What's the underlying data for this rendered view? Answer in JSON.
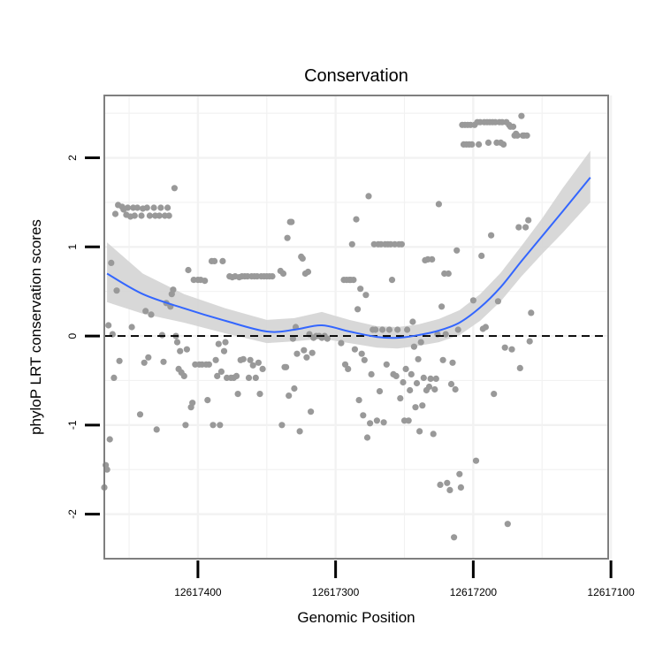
{
  "chart_data": {
    "type": "scatter",
    "title": "Conservation",
    "xlabel": "Genomic Position",
    "ylabel": "phyloP LRT conservation scores",
    "x_reversed": true,
    "xlim": [
      12617468,
      12617102
    ],
    "ylim": [
      -2.5,
      2.7
    ],
    "x_ticks": [
      12617400,
      12617300,
      12617200,
      12617100
    ],
    "x_tick_labels": [
      "12617400",
      "12617300",
      "12617200",
      "12617100"
    ],
    "y_ticks": [
      -2,
      -1,
      0,
      1,
      2
    ],
    "y_tick_labels": [
      "-2",
      "-1",
      "0",
      "1",
      "2"
    ],
    "grid": true,
    "reference_line": {
      "y": 0,
      "style": "dashed",
      "color": "#000000"
    },
    "colors": {
      "points": "#999999",
      "smooth_line": "#3366FF",
      "confidence_band": "#D4D4D4",
      "panel_border": "#7F7F7F",
      "grid": "#F2F2F2"
    },
    "smooth": {
      "method": "loess",
      "x": [
        12617466,
        12617440,
        12617410,
        12617380,
        12617350,
        12617330,
        12617310,
        12617290,
        12617270,
        12617255,
        12617240,
        12617225,
        12617210,
        12617195,
        12617180,
        12617165,
        12617150,
        12617135,
        12617115
      ],
      "y": [
        0.7,
        0.47,
        0.31,
        0.17,
        0.05,
        0.07,
        0.12,
        0.05,
        -0.01,
        -0.02,
        0.01,
        0.06,
        0.15,
        0.32,
        0.55,
        0.84,
        1.12,
        1.4,
        1.78
      ],
      "upper": [
        1.05,
        0.7,
        0.47,
        0.31,
        0.18,
        0.2,
        0.27,
        0.18,
        0.11,
        0.1,
        0.13,
        0.19,
        0.29,
        0.47,
        0.71,
        1.01,
        1.32,
        1.66,
        2.08
      ],
      "lower": [
        0.38,
        0.25,
        0.15,
        0.03,
        -0.08,
        -0.06,
        -0.03,
        -0.08,
        -0.13,
        -0.14,
        -0.11,
        -0.07,
        0.01,
        0.17,
        0.39,
        0.67,
        0.92,
        1.16,
        1.5
      ]
    },
    "points": [
      [
        12617468,
        -1.7
      ],
      [
        12617467,
        -1.45
      ],
      [
        12617466,
        -1.5
      ],
      [
        12617465,
        0.12
      ],
      [
        12617464,
        -1.16
      ],
      [
        12617463,
        0.82
      ],
      [
        12617462,
        0.02
      ],
      [
        12617461,
        -0.47
      ],
      [
        12617460,
        1.37
      ],
      [
        12617459,
        0.51
      ],
      [
        12617458,
        1.47
      ],
      [
        12617457,
        -0.28
      ],
      [
        12617455,
        1.45
      ],
      [
        12617454,
        1.42
      ],
      [
        12617452,
        1.36
      ],
      [
        12617451,
        1.44
      ],
      [
        12617449,
        1.34
      ],
      [
        12617448,
        0.1
      ],
      [
        12617447,
        1.44
      ],
      [
        12617446,
        1.35
      ],
      [
        12617444,
        1.44
      ],
      [
        12617442,
        -0.88
      ],
      [
        12617441,
        1.35
      ],
      [
        12617440,
        1.43
      ],
      [
        12617439,
        -0.3
      ],
      [
        12617438,
        0.28
      ],
      [
        12617437,
        1.44
      ],
      [
        12617436,
        -0.24
      ],
      [
        12617435,
        1.35
      ],
      [
        12617434,
        0.24
      ],
      [
        12617432,
        1.44
      ],
      [
        12617431,
        1.35
      ],
      [
        12617430,
        -1.05
      ],
      [
        12617428,
        1.35
      ],
      [
        12617427,
        1.44
      ],
      [
        12617426,
        0.01
      ],
      [
        12617425,
        -0.29
      ],
      [
        12617424,
        1.35
      ],
      [
        12617423,
        0.37
      ],
      [
        12617422,
        1.44
      ],
      [
        12617421,
        1.35
      ],
      [
        12617420,
        0.33
      ],
      [
        12617419,
        0.47
      ],
      [
        12617418,
        0.52
      ],
      [
        12617417,
        1.66
      ],
      [
        12617416,
        0.0
      ],
      [
        12617415,
        -0.07
      ],
      [
        12617414,
        -0.37
      ],
      [
        12617413,
        -0.17
      ],
      [
        12617412,
        -0.41
      ],
      [
        12617410,
        -0.45
      ],
      [
        12617409,
        -1.0
      ],
      [
        12617408,
        -0.15
      ],
      [
        12617407,
        0.74
      ],
      [
        12617405,
        -0.8
      ],
      [
        12617404,
        -0.75
      ],
      [
        12617403,
        0.63
      ],
      [
        12617402,
        -0.32
      ],
      [
        12617400,
        0.63
      ],
      [
        12617399,
        -0.32
      ],
      [
        12617398,
        0.63
      ],
      [
        12617397,
        -0.32
      ],
      [
        12617395,
        0.62
      ],
      [
        12617394,
        -0.32
      ],
      [
        12617393,
        -0.72
      ],
      [
        12617392,
        -0.32
      ],
      [
        12617390,
        0.84
      ],
      [
        12617389,
        -1.0
      ],
      [
        12617388,
        0.84
      ],
      [
        12617387,
        -0.27
      ],
      [
        12617386,
        -0.45
      ],
      [
        12617385,
        -0.09
      ],
      [
        12617384,
        -1.0
      ],
      [
        12617383,
        -0.4
      ],
      [
        12617382,
        0.84
      ],
      [
        12617381,
        -0.17
      ],
      [
        12617380,
        -0.07
      ],
      [
        12617379,
        -0.47
      ],
      [
        12617377,
        0.67
      ],
      [
        12617376,
        -0.47
      ],
      [
        12617375,
        0.66
      ],
      [
        12617374,
        -0.47
      ],
      [
        12617373,
        0.67
      ],
      [
        12617372,
        -0.45
      ],
      [
        12617371,
        -0.65
      ],
      [
        12617370,
        0.66
      ],
      [
        12617369,
        -0.27
      ],
      [
        12617368,
        0.67
      ],
      [
        12617367,
        -0.26
      ],
      [
        12617366,
        0.67
      ],
      [
        12617364,
        0.67
      ],
      [
        12617363,
        -0.47
      ],
      [
        12617362,
        -0.27
      ],
      [
        12617361,
        0.67
      ],
      [
        12617360,
        -0.33
      ],
      [
        12617359,
        0.67
      ],
      [
        12617358,
        -0.47
      ],
      [
        12617357,
        0.67
      ],
      [
        12617356,
        -0.3
      ],
      [
        12617355,
        -0.65
      ],
      [
        12617354,
        0.67
      ],
      [
        12617353,
        -0.37
      ],
      [
        12617352,
        0.67
      ],
      [
        12617350,
        0.67
      ],
      [
        12617348,
        0.67
      ],
      [
        12617346,
        0.67
      ],
      [
        12617340,
        0.73
      ],
      [
        12617339,
        -1.0
      ],
      [
        12617338,
        0.7
      ],
      [
        12617337,
        -0.35
      ],
      [
        12617336,
        -0.35
      ],
      [
        12617335,
        1.1
      ],
      [
        12617334,
        -0.67
      ],
      [
        12617333,
        1.28
      ],
      [
        12617332,
        1.28
      ],
      [
        12617331,
        -0.03
      ],
      [
        12617330,
        -0.59
      ],
      [
        12617329,
        0.1
      ],
      [
        12617328,
        -0.2
      ],
      [
        12617326,
        -1.07
      ],
      [
        12617325,
        0.89
      ],
      [
        12617324,
        0.87
      ],
      [
        12617323,
        -0.16
      ],
      [
        12617322,
        0.7
      ],
      [
        12617321,
        -0.24
      ],
      [
        12617320,
        0.72
      ],
      [
        12617319,
        0.02
      ],
      [
        12617318,
        -0.85
      ],
      [
        12617317,
        -0.19
      ],
      [
        12617316,
        -0.02
      ],
      [
        12617314,
        0.0
      ],
      [
        12617312,
        0.0
      ],
      [
        12617310,
        -0.02
      ],
      [
        12617308,
        0.0
      ],
      [
        12617306,
        -0.03
      ],
      [
        12617296,
        -0.08
      ],
      [
        12617294,
        0.63
      ],
      [
        12617293,
        -0.32
      ],
      [
        12617292,
        0.63
      ],
      [
        12617291,
        -0.37
      ],
      [
        12617290,
        0.63
      ],
      [
        12617289,
        0.63
      ],
      [
        12617288,
        1.03
      ],
      [
        12617287,
        0.63
      ],
      [
        12617286,
        -0.15
      ],
      [
        12617285,
        1.31
      ],
      [
        12617284,
        0.3
      ],
      [
        12617283,
        -0.72
      ],
      [
        12617282,
        0.53
      ],
      [
        12617281,
        -0.2
      ],
      [
        12617280,
        -0.89
      ],
      [
        12617279,
        -0.27
      ],
      [
        12617278,
        0.46
      ],
      [
        12617277,
        -1.14
      ],
      [
        12617276,
        1.57
      ],
      [
        12617275,
        -0.98
      ],
      [
        12617274,
        -0.43
      ],
      [
        12617273,
        0.07
      ],
      [
        12617272,
        1.03
      ],
      [
        12617271,
        0.07
      ],
      [
        12617270,
        -0.95
      ],
      [
        12617269,
        1.03
      ],
      [
        12617268,
        -0.62
      ],
      [
        12617267,
        1.03
      ],
      [
        12617266,
        0.07
      ],
      [
        12617265,
        -0.97
      ],
      [
        12617264,
        1.03
      ],
      [
        12617263,
        -0.32
      ],
      [
        12617262,
        1.03
      ],
      [
        12617261,
        0.07
      ],
      [
        12617260,
        1.03
      ],
      [
        12617259,
        0.63
      ],
      [
        12617258,
        -0.43
      ],
      [
        12617257,
        1.03
      ],
      [
        12617256,
        -0.45
      ],
      [
        12617255,
        0.07
      ],
      [
        12617254,
        1.03
      ],
      [
        12617253,
        -0.7
      ],
      [
        12617252,
        1.03
      ],
      [
        12617251,
        -0.52
      ],
      [
        12617250,
        -0.95
      ],
      [
        12617249,
        -0.37
      ],
      [
        12617248,
        0.07
      ],
      [
        12617247,
        -0.95
      ],
      [
        12617246,
        -0.61
      ],
      [
        12617245,
        -0.43
      ],
      [
        12617244,
        0.16
      ],
      [
        12617243,
        -0.12
      ],
      [
        12617242,
        -0.8
      ],
      [
        12617241,
        -0.53
      ],
      [
        12617240,
        -0.26
      ],
      [
        12617239,
        -1.07
      ],
      [
        12617238,
        -0.07
      ],
      [
        12617237,
        -0.78
      ],
      [
        12617236,
        -0.47
      ],
      [
        12617235,
        0.85
      ],
      [
        12617234,
        -0.61
      ],
      [
        12617233,
        0.86
      ],
      [
        12617232,
        -0.57
      ],
      [
        12617231,
        -0.48
      ],
      [
        12617230,
        0.86
      ],
      [
        12617229,
        -1.1
      ],
      [
        12617228,
        -0.6
      ],
      [
        12617227,
        -0.48
      ],
      [
        12617226,
        0.02
      ],
      [
        12617225,
        1.48
      ],
      [
        12617224,
        -1.67
      ],
      [
        12617223,
        0.33
      ],
      [
        12617222,
        -0.27
      ],
      [
        12617221,
        0.7
      ],
      [
        12617220,
        0.02
      ],
      [
        12617219,
        -1.65
      ],
      [
        12617218,
        0.7
      ],
      [
        12617217,
        -1.73
      ],
      [
        12617216,
        -0.54
      ],
      [
        12617215,
        -0.3
      ],
      [
        12617214,
        -2.26
      ],
      [
        12617213,
        -0.6
      ],
      [
        12617212,
        0.96
      ],
      [
        12617211,
        0.07
      ],
      [
        12617210,
        -1.55
      ],
      [
        12617209,
        -1.7
      ],
      [
        12617208,
        2.37
      ],
      [
        12617207,
        2.15
      ],
      [
        12617206,
        2.37
      ],
      [
        12617205,
        2.15
      ],
      [
        12617204,
        2.37
      ],
      [
        12617203,
        2.15
      ],
      [
        12617202,
        2.37
      ],
      [
        12617201,
        2.15
      ],
      [
        12617200,
        0.4
      ],
      [
        12617199,
        2.37
      ],
      [
        12617198,
        -1.4
      ],
      [
        12617197,
        2.4
      ],
      [
        12617196,
        2.15
      ],
      [
        12617195,
        2.4
      ],
      [
        12617194,
        0.9
      ],
      [
        12617193,
        0.08
      ],
      [
        12617192,
        2.4
      ],
      [
        12617191,
        0.1
      ],
      [
        12617190,
        2.4
      ],
      [
        12617189,
        2.17
      ],
      [
        12617188,
        2.4
      ],
      [
        12617187,
        1.13
      ],
      [
        12617186,
        2.4
      ],
      [
        12617185,
        -0.65
      ],
      [
        12617184,
        2.4
      ],
      [
        12617183,
        2.17
      ],
      [
        12617182,
        0.39
      ],
      [
        12617181,
        2.4
      ],
      [
        12617180,
        2.17
      ],
      [
        12617179,
        2.4
      ],
      [
        12617178,
        2.15
      ],
      [
        12617177,
        -0.13
      ],
      [
        12617176,
        2.4
      ],
      [
        12617175,
        -2.11
      ],
      [
        12617174,
        2.37
      ],
      [
        12617173,
        2.35
      ],
      [
        12617172,
        -0.15
      ],
      [
        12617171,
        2.35
      ],
      [
        12617170,
        2.25
      ],
      [
        12617169,
        2.27
      ],
      [
        12617168,
        2.25
      ],
      [
        12617167,
        1.22
      ],
      [
        12617166,
        -0.36
      ],
      [
        12617165,
        2.47
      ],
      [
        12617164,
        2.25
      ],
      [
        12617163,
        2.25
      ],
      [
        12617162,
        1.22
      ],
      [
        12617161,
        2.25
      ],
      [
        12617160,
        1.3
      ],
      [
        12617159,
        -0.06
      ],
      [
        12617158,
        0.26
      ]
    ]
  }
}
